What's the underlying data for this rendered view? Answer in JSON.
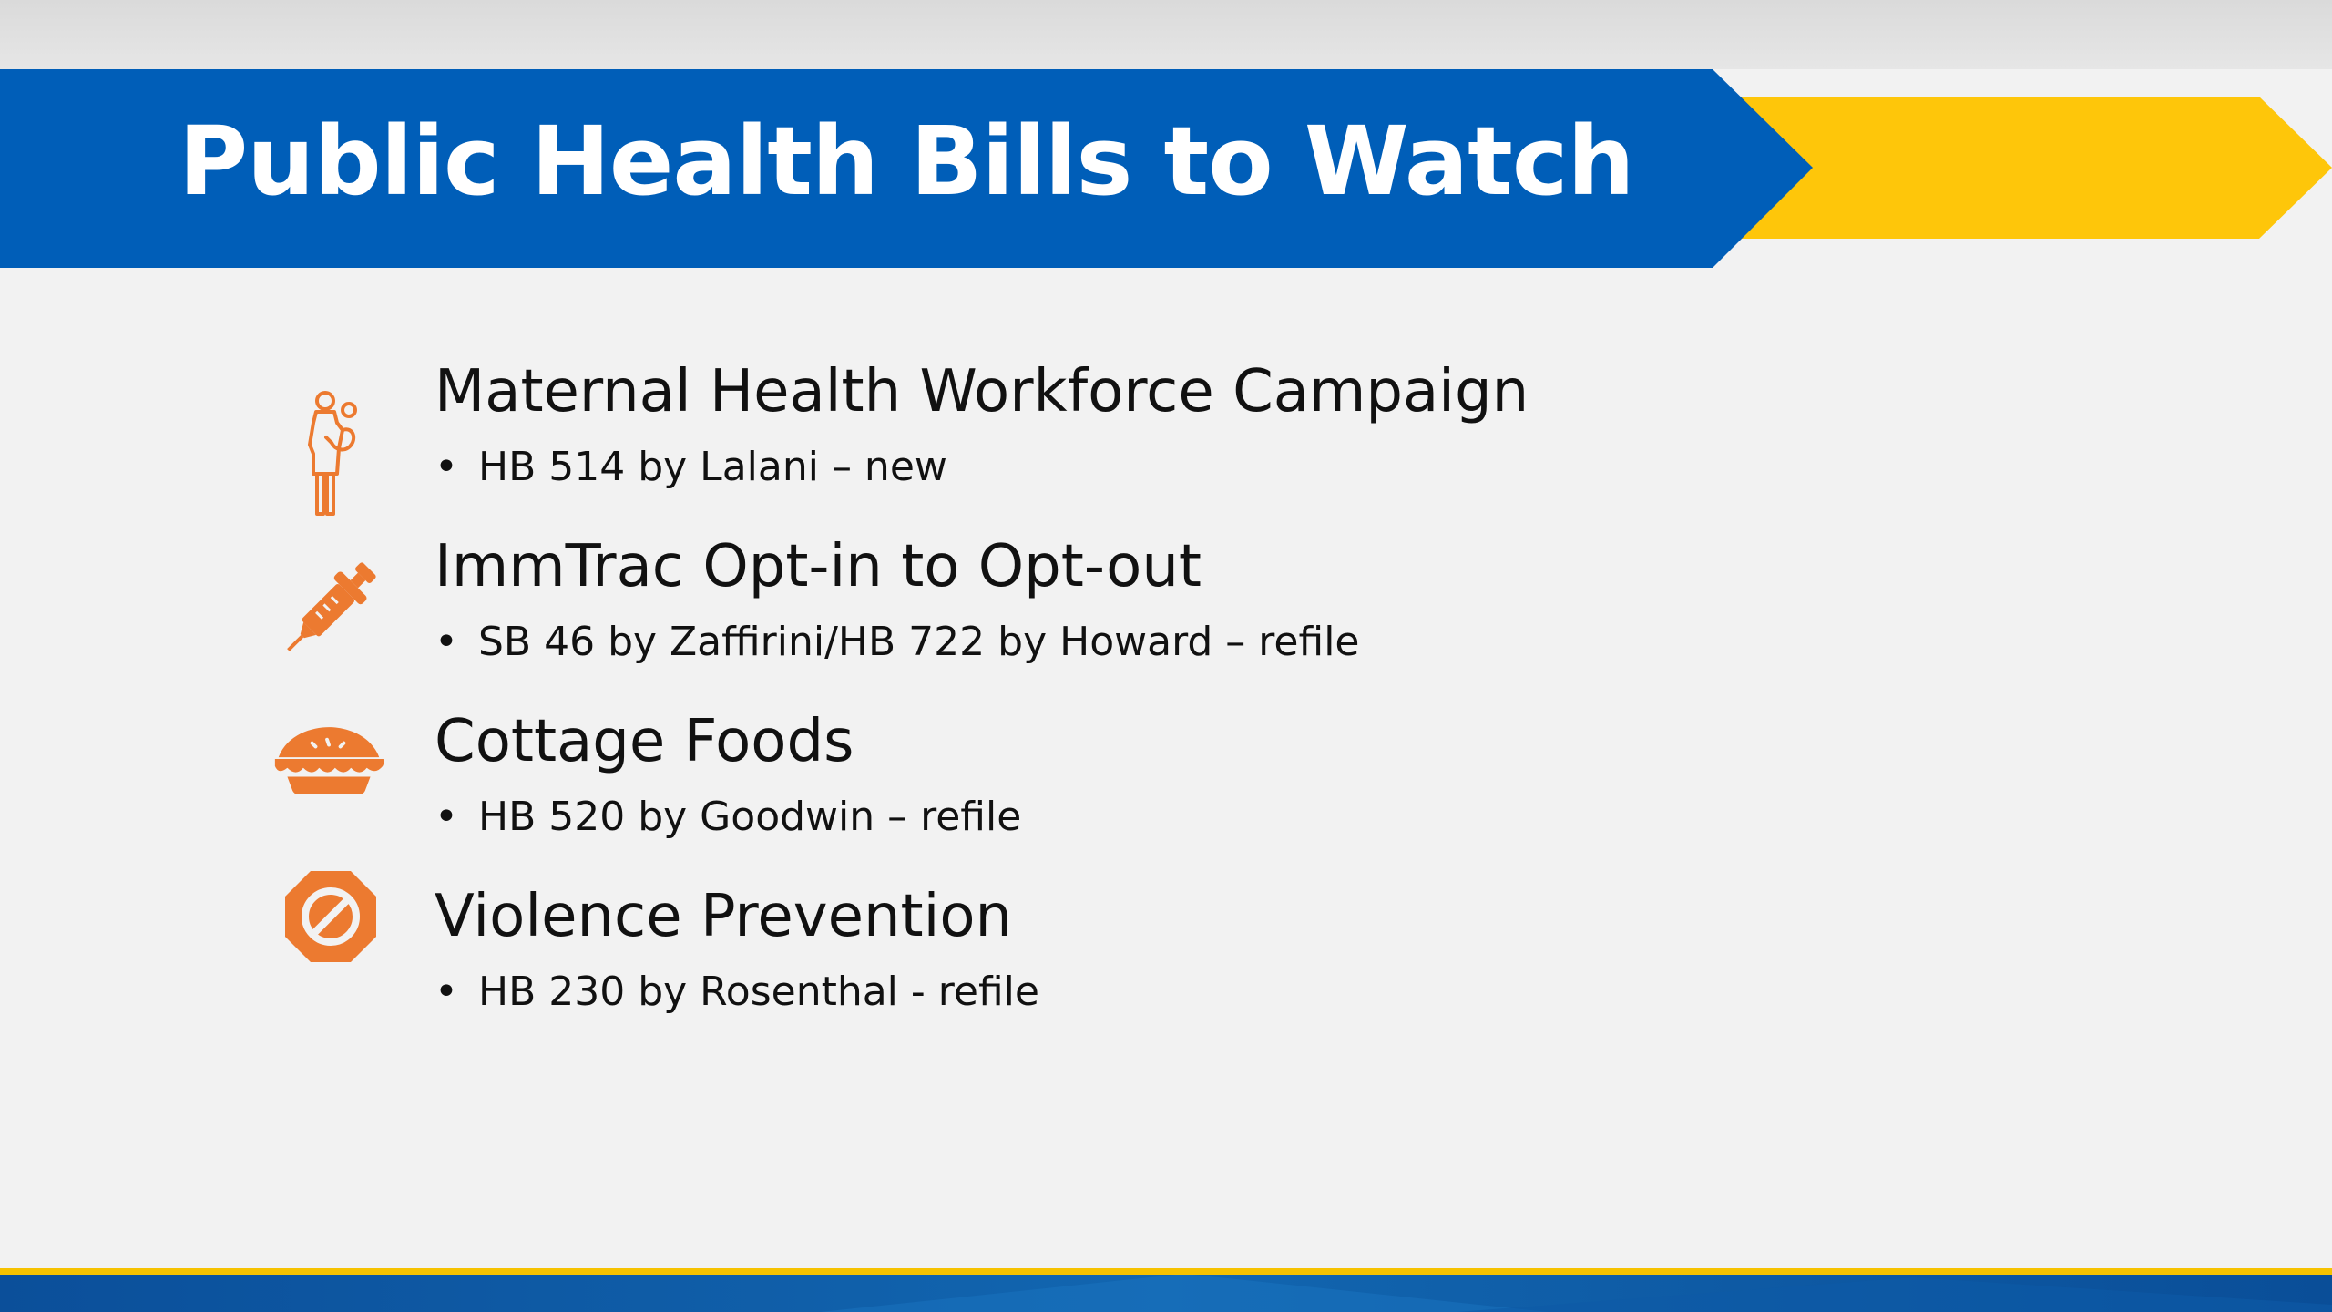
{
  "slide": {
    "title": "Public Health Bills to Watch"
  },
  "colors": {
    "banner_blue": "#005eb8",
    "banner_yellow": "#fec60a",
    "icon_orange": "#ec7a30",
    "footer_blue": "#0f5ea7"
  },
  "topics": [
    {
      "icon": "mother-and-baby-icon",
      "title": "Maternal Health Workforce Campaign",
      "bullet_marker": "•",
      "bullet": "HB 514 by Lalani – new"
    },
    {
      "icon": "syringe-icon",
      "title": "ImmTrac Opt-in to Opt-out",
      "bullet_marker": "•",
      "bullet": "SB 46 by Zaffirini/HB 722 by Howard – refile"
    },
    {
      "icon": "pie-icon",
      "title": "Cottage Foods",
      "bullet_marker": "•",
      "bullet": "HB 520 by Goodwin – refile"
    },
    {
      "icon": "prohibited-sign-icon",
      "title": "Violence Prevention",
      "bullet_marker": "•",
      "bullet": "HB 230 by Rosenthal - refile"
    }
  ]
}
